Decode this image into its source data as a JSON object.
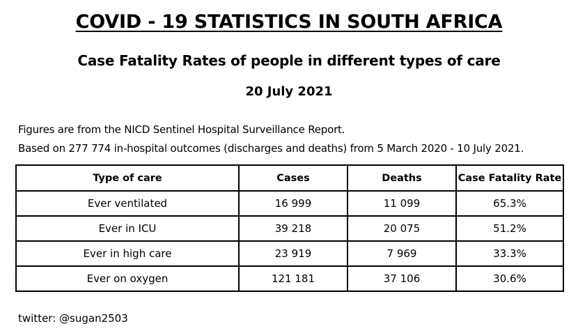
{
  "title": "COVID - 19 STATISTICS IN SOUTH AFRICA",
  "subtitle": "Case Fatality Rates of people in different types of care",
  "date": "20 July 2021",
  "notes": [
    "Figures are from the NICD Sentinel Hospital Surveillance Report.",
    "Based on 277 774 in-hospital outcomes (discharges and deaths) from 5 March 2020 - 10 July 2021."
  ],
  "table": {
    "headers": [
      "Type of care",
      "Cases",
      "Deaths",
      "Case Fatality Rate"
    ],
    "rows": [
      [
        "Ever ventilated",
        "16 999",
        "11 099",
        "65.3%"
      ],
      [
        "Ever in ICU",
        "39 218",
        "20 075",
        "51.2%"
      ],
      [
        "Ever in high care",
        "23 919",
        "7 969",
        "33.3%"
      ],
      [
        "Ever on oxygen",
        "121 181",
        "37 106",
        "30.6%"
      ]
    ]
  },
  "footer": "twitter: @sugan2503"
}
